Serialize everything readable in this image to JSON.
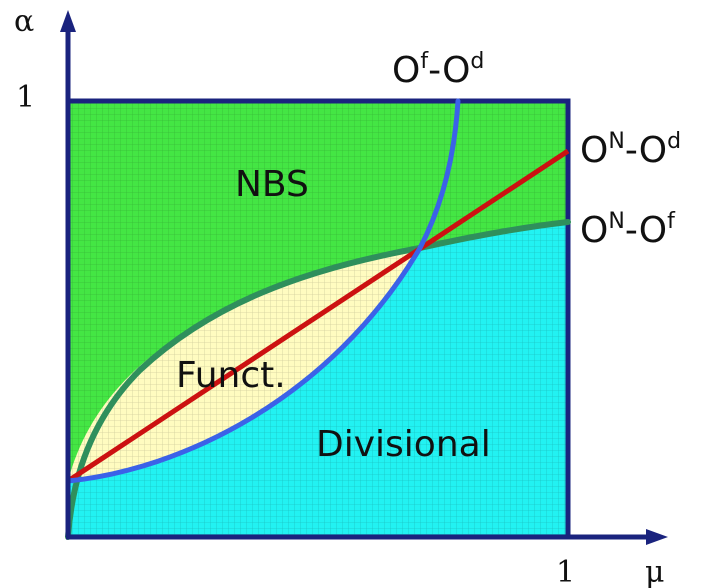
{
  "axes": {
    "y_symbol": "α",
    "x_symbol": "μ",
    "y_tick_one": "1",
    "x_tick_one": "1"
  },
  "regions": {
    "nbs": "NBS",
    "functional": "Funct.",
    "divisional": "Divisional"
  },
  "curves": {
    "of_od": {
      "base": "O",
      "sup1": "f",
      "mid": "-O",
      "sup2": "d"
    },
    "on_od": {
      "base": "O",
      "sup1": "N",
      "mid": "-O",
      "sup2": "d"
    },
    "on_of": {
      "base": "O",
      "sup1": "N",
      "mid": "-O",
      "sup2": "f"
    }
  },
  "colors": {
    "axis": "#1a237e",
    "nbs_fill": "#44e644",
    "divisional_fill": "#22f2f2",
    "functional_fill": "#fffcc0",
    "grid": "#8fb98f",
    "curve_of_od": "#3b62e8",
    "curve_on_od": "#cc1111",
    "curve_on_of": "#2f8f5c"
  }
}
